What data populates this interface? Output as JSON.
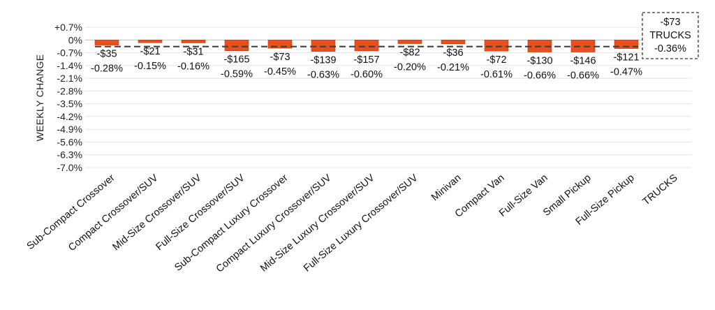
{
  "chart_data": {
    "type": "bar",
    "ylabel": "WEEKLY CHANGE",
    "xlabel": "",
    "title": "",
    "ylim": [
      -7.0,
      0.7
    ],
    "y_ticks": [
      "+0.7%",
      "0%",
      "-0.7%",
      "-1.4%",
      "-2.1%",
      "-2.8%",
      "-3.5%",
      "-4.2%",
      "-4.9%",
      "-5.6%",
      "-6.3%",
      "-7.0%"
    ],
    "y_tick_values": [
      0.7,
      0,
      -0.7,
      -1.4,
      -2.1,
      -2.8,
      -3.5,
      -4.2,
      -4.9,
      -5.6,
      -6.3,
      -7.0
    ],
    "grid": true,
    "categories": [
      "Sub-Compact Crossover",
      "Compact Crossover/SUV",
      "Mid-Size Crossover/SUV",
      "Full-Size Crossover/SUV",
      "Sub-Compact Luxury Crossover",
      "Compact Luxury Crossover/SUV",
      "Mid-Size Luxury Crossover/SUV",
      "Full-Size Luxury Crossover/SUV",
      "Minivan",
      "Compact Van",
      "Full-Size Van",
      "Small Pickup",
      "Full-Size Pickup",
      "TRUCKS"
    ],
    "values": [
      -0.28,
      -0.15,
      -0.16,
      -0.59,
      -0.45,
      -0.63,
      -0.6,
      -0.2,
      -0.21,
      -0.61,
      -0.66,
      -0.66,
      -0.47,
      null
    ],
    "dollar_labels": [
      "-$35",
      "-$21",
      "-$31",
      "-$165",
      "-$73",
      "-$139",
      "-$157",
      "-$82",
      "-$36",
      "-$72",
      "-$130",
      "-$146",
      "-$121",
      ""
    ],
    "percent_labels": [
      "-0.28%",
      "-0.15%",
      "-0.16%",
      "-0.59%",
      "-0.45%",
      "-0.63%",
      "-0.60%",
      "-0.20%",
      "-0.21%",
      "-0.61%",
      "-0.66%",
      "-0.66%",
      "-0.47%",
      ""
    ],
    "reference_line": {
      "value": -0.36,
      "style": "dashed",
      "annotation": [
        "-$73",
        "TRUCKS",
        "-0.36%"
      ]
    },
    "colors": {
      "bar": "#E8501E",
      "bar_edge": "#B13A10",
      "reference": "#404040"
    }
  }
}
